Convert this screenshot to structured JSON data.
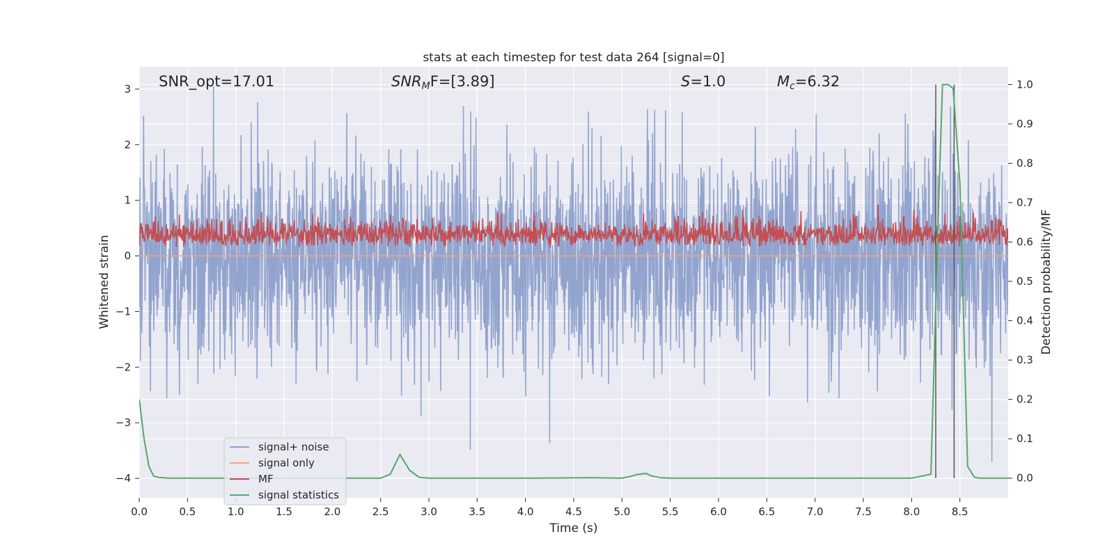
{
  "chart_data": {
    "type": "line",
    "title": "stats at each timestep for test data 264 [signal=0]",
    "xlabel": "Time (s)",
    "ylabel": "Whitened strain",
    "y2label": "Detection probability/MF",
    "xlim": [
      0.0,
      9.0
    ],
    "ylim": [
      -4.35,
      3.4
    ],
    "y2lim": [
      -0.05,
      1.045
    ],
    "xticks": [
      "0.0",
      "0.5",
      "1.0",
      "1.5",
      "2.0",
      "2.5",
      "3.0",
      "3.5",
      "4.0",
      "4.5",
      "5.0",
      "5.5",
      "6.0",
      "6.5",
      "7.0",
      "7.5",
      "8.0",
      "8.5"
    ],
    "yticks": [
      "−4",
      "−3",
      "−2",
      "−1",
      "0",
      "1",
      "2",
      "3"
    ],
    "y2ticks": [
      "0.0",
      "0.1",
      "0.2",
      "0.3",
      "0.4",
      "0.5",
      "0.6",
      "0.7",
      "0.8",
      "0.9",
      "1.0"
    ],
    "grid": true,
    "legend_position": "lower-left",
    "annotations": {
      "snr_opt": "SNR_opt=17.01",
      "snr_mf_main": "SNR",
      "snr_mf_sub": "M",
      "snr_mf_rest": "F=[3.89]",
      "s_main": "S",
      "s_rest": "=1.0",
      "mc_main": "M",
      "mc_sub": "c",
      "mc_rest": "=6.32"
    },
    "series": [
      {
        "name": "signal+ noise",
        "axis": "left",
        "color": "#8da0cb",
        "description": "white noise, approx N(0,1) spanning roughly -3.6 to 3.0",
        "x_range": [
          0.0,
          9.0
        ],
        "amplitude_std": 1.0
      },
      {
        "name": "signal only",
        "axis": "left",
        "color": "#f4a582",
        "x": [
          0.0,
          9.0
        ],
        "y": [
          0.0,
          0.0
        ]
      },
      {
        "name": "MF",
        "axis": "right",
        "color": "#c44e52",
        "description": "noisy band centred near 0.63 on the right axis, spanning roughly 0.57 to 0.72",
        "x_range": [
          0.0,
          9.0
        ],
        "center": 0.63
      },
      {
        "name": "signal statistics",
        "axis": "right",
        "color": "#55a868",
        "x": [
          0.0,
          0.05,
          0.1,
          0.15,
          0.2,
          0.3,
          0.5,
          1.0,
          2.0,
          2.5,
          2.6,
          2.7,
          2.8,
          2.9,
          3.0,
          4.0,
          4.7,
          5.0,
          5.1,
          5.15,
          5.25,
          5.3,
          5.4,
          5.5,
          6.0,
          7.0,
          8.0,
          8.2,
          8.28,
          8.32,
          8.38,
          8.43,
          8.5,
          8.58,
          8.65,
          8.7,
          9.0
        ],
        "y": [
          0.2,
          0.1,
          0.03,
          0.005,
          0.002,
          0.0,
          0.0,
          0.0,
          0.0,
          0.0,
          0.01,
          0.06,
          0.02,
          0.002,
          0.0,
          0.0,
          0.001,
          0.0,
          0.005,
          0.009,
          0.012,
          0.006,
          0.001,
          0.0,
          0.0,
          0.0,
          0.0,
          0.01,
          0.7,
          1.0,
          1.0,
          0.99,
          0.75,
          0.03,
          0.002,
          0.0,
          0.0
        ]
      }
    ],
    "vlines": [
      8.25,
      8.44
    ],
    "vline_color": "#555555"
  },
  "colors": {
    "plot_bg": "#eaeaf2",
    "grid": "#ffffff",
    "text": "#262626"
  }
}
